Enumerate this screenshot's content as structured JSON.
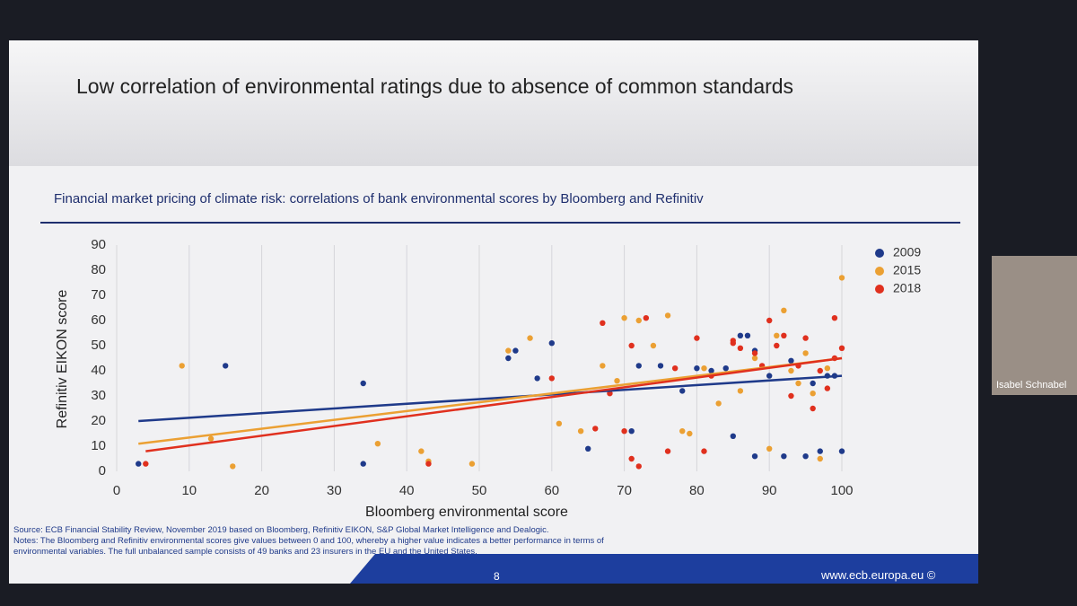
{
  "slide": {
    "title": "Low correlation of environmental ratings due to absence of common standards",
    "subtitle": "Financial market pricing of climate risk: correlations of bank environmental scores by Bloomberg and Refinitiv",
    "source": "Source: ECB Financial Stability Review, November 2019 based on Bloomberg, Refinitiv EIKON, S&P Global Market Intelligence and Dealogic.",
    "notes": "Notes: The Bloomberg and Refinitiv environmental scores give values between 0 and 100, whereby a higher value indicates a better performance in terms of environmental variables. The full unbalanced sample consists of 49 banks and 23 insurers in the EU and the United States.",
    "page": "8",
    "url": "www.ecb.europa.eu ©"
  },
  "participant": "Isabel Schnabel",
  "chart_data": {
    "type": "scatter",
    "x_label": "Bloomberg environmental score",
    "y_label": "Refinitiv EIKON score",
    "xlim": [
      0,
      100
    ],
    "ylim": [
      0,
      90
    ],
    "xticks": [
      0,
      10,
      20,
      30,
      40,
      50,
      60,
      70,
      80,
      90,
      100
    ],
    "yticks": [
      0,
      10,
      20,
      30,
      40,
      50,
      60,
      70,
      80,
      90
    ],
    "grid": true,
    "legend": "upper right",
    "series": [
      {
        "name": "2009",
        "color": "#1f3a8a",
        "x": [
          3,
          15,
          34,
          34,
          54,
          55,
          60,
          58,
          65,
          71,
          72,
          75,
          78,
          80,
          84,
          85,
          86,
          87,
          88,
          88,
          90,
          92,
          93,
          95,
          96,
          97,
          98,
          100,
          99,
          82
        ],
        "values": [
          3,
          42,
          35,
          3,
          45,
          48,
          51,
          37,
          9,
          16,
          42,
          42,
          32,
          41,
          41,
          14,
          54,
          54,
          48,
          6,
          38,
          6,
          44,
          6,
          35,
          8,
          38,
          8,
          38,
          40
        ],
        "trend_x": [
          3,
          100
        ],
        "trend": [
          20,
          38
        ]
      },
      {
        "name": "2015",
        "color": "#eba033",
        "x": [
          9,
          13,
          16,
          36,
          42,
          43,
          49,
          54,
          57,
          61,
          64,
          67,
          69,
          70,
          72,
          74,
          76,
          78,
          79,
          81,
          83,
          86,
          88,
          90,
          91,
          92,
          93,
          95,
          96,
          98,
          100,
          97,
          94
        ],
        "values": [
          42,
          13,
          2,
          11,
          8,
          4,
          3,
          48,
          53,
          19,
          16,
          42,
          36,
          61,
          60,
          50,
          62,
          16,
          15,
          41,
          27,
          32,
          45,
          9,
          54,
          64,
          40,
          47,
          31,
          41,
          77,
          5,
          35
        ],
        "trend_x": [
          3,
          100
        ],
        "trend": [
          11,
          45
        ]
      },
      {
        "name": "2018",
        "color": "#e0301e",
        "x": [
          4,
          43,
          60,
          67,
          68,
          70,
          71,
          72,
          73,
          71,
          76,
          77,
          80,
          81,
          82,
          85,
          86,
          88,
          89,
          90,
          91,
          92,
          93,
          94,
          95,
          96,
          97,
          98,
          99,
          100,
          66,
          85,
          99
        ],
        "values": [
          3,
          3,
          37,
          59,
          31,
          16,
          5,
          2,
          61,
          50,
          8,
          41,
          53,
          8,
          38,
          51,
          49,
          47,
          42,
          60,
          50,
          54,
          30,
          42,
          53,
          25,
          40,
          33,
          61,
          49,
          17,
          52,
          45
        ],
        "trend_x": [
          4,
          100
        ],
        "trend": [
          8,
          45
        ]
      }
    ]
  }
}
